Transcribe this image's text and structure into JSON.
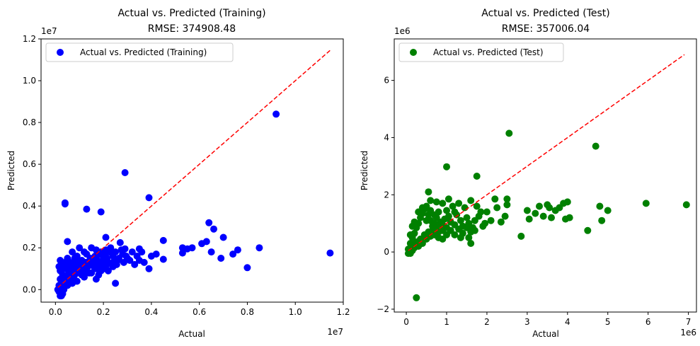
{
  "chart_data": [
    {
      "type": "scatter",
      "title_line1": "Actual vs. Predicted (Training)",
      "title_line2": "RMSE: 374908.48",
      "xlabel": "Actual",
      "ylabel": "Predicted",
      "x_offset_label": "1e7",
      "y_offset_label": "1e7",
      "xlim": [
        -0.06,
        1.2
      ],
      "ylim": [
        -0.06,
        1.2
      ],
      "xticks": [
        0.0,
        0.2,
        0.4,
        0.6,
        0.8,
        1.0,
        1.2
      ],
      "xtick_labels": [
        "0.0",
        "0.2",
        "0.4",
        "0.6",
        "0.8",
        "1.0",
        "1.2"
      ],
      "yticks": [
        0.0,
        0.2,
        0.4,
        0.6,
        0.8,
        1.0,
        1.2
      ],
      "ytick_labels": [
        "0.0",
        "0.2",
        "0.4",
        "0.6",
        "0.8",
        "1.0",
        "1.2"
      ],
      "legend": {
        "label": "Actual vs. Predicted (Training)",
        "position": "upper-left"
      },
      "marker_color": "#0000ff",
      "identity_line": {
        "color": "#ff0000",
        "from": [
          0.01,
          0.01
        ],
        "to": [
          1.145,
          1.145
        ],
        "style": "dashed"
      },
      "points": [
        [
          0.92,
          0.84
        ],
        [
          1.145,
          0.175
        ],
        [
          0.29,
          0.56
        ],
        [
          0.39,
          0.44
        ],
        [
          0.04,
          0.415
        ],
        [
          0.04,
          0.41
        ],
        [
          0.13,
          0.385
        ],
        [
          0.19,
          0.372
        ],
        [
          0.64,
          0.32
        ],
        [
          0.66,
          0.29
        ],
        [
          0.21,
          0.25
        ],
        [
          0.7,
          0.25
        ],
        [
          0.45,
          0.235
        ],
        [
          0.63,
          0.23
        ],
        [
          0.05,
          0.23
        ],
        [
          0.27,
          0.225
        ],
        [
          0.61,
          0.22
        ],
        [
          0.85,
          0.2
        ],
        [
          0.76,
          0.19
        ],
        [
          0.29,
          0.195
        ],
        [
          0.35,
          0.195
        ],
        [
          0.53,
          0.2
        ],
        [
          0.53,
          0.175
        ],
        [
          0.57,
          0.2
        ],
        [
          0.55,
          0.195
        ],
        [
          0.65,
          0.18
        ],
        [
          0.74,
          0.17
        ],
        [
          0.8,
          0.105
        ],
        [
          0.69,
          0.15
        ],
        [
          0.45,
          0.145
        ],
        [
          0.39,
          0.1
        ],
        [
          0.25,
          0.03
        ],
        [
          0.17,
          0.05
        ],
        [
          0.36,
          0.18
        ],
        [
          0.4,
          0.16
        ],
        [
          0.42,
          0.17
        ],
        [
          0.02,
          -0.03
        ],
        [
          0.03,
          -0.02
        ],
        [
          0.05,
          0.02
        ],
        [
          0.07,
          0.03
        ],
        [
          0.08,
          0.07
        ],
        [
          0.1,
          0.08
        ],
        [
          0.12,
          0.1
        ],
        [
          0.14,
          0.12
        ],
        [
          0.16,
          0.14
        ],
        [
          0.18,
          0.12
        ],
        [
          0.2,
          0.15
        ],
        [
          0.22,
          0.13
        ],
        [
          0.24,
          0.16
        ],
        [
          0.26,
          0.14
        ],
        [
          0.28,
          0.17
        ],
        [
          0.3,
          0.15
        ],
        [
          0.32,
          0.18
        ],
        [
          0.34,
          0.16
        ],
        [
          0.02,
          0.14
        ],
        [
          0.03,
          0.12
        ],
        [
          0.04,
          0.1
        ],
        [
          0.05,
          0.15
        ],
        [
          0.06,
          0.13
        ],
        [
          0.07,
          0.18
        ],
        [
          0.08,
          0.12
        ],
        [
          0.09,
          0.16
        ],
        [
          0.1,
          0.2
        ],
        [
          0.11,
          0.14
        ],
        [
          0.12,
          0.18
        ],
        [
          0.13,
          0.17
        ],
        [
          0.15,
          0.2
        ],
        [
          0.17,
          0.19
        ],
        [
          0.19,
          0.18
        ],
        [
          0.21,
          0.19
        ],
        [
          0.23,
          0.2
        ],
        [
          0.25,
          0.18
        ],
        [
          0.02,
          0.05
        ],
        [
          0.03,
          0.07
        ],
        [
          0.04,
          0.04
        ],
        [
          0.06,
          0.06
        ],
        [
          0.08,
          0.09
        ],
        [
          0.09,
          0.04
        ],
        [
          0.11,
          0.07
        ],
        [
          0.13,
          0.09
        ],
        [
          0.15,
          0.08
        ],
        [
          0.17,
          0.1
        ],
        [
          0.19,
          0.09
        ],
        [
          0.21,
          0.11
        ],
        [
          0.01,
          0.0
        ],
        [
          0.015,
          0.02
        ],
        [
          0.025,
          0.01
        ],
        [
          0.035,
          0.03
        ],
        [
          0.045,
          0.06
        ],
        [
          0.055,
          0.08
        ],
        [
          0.065,
          0.1
        ],
        [
          0.075,
          0.05
        ],
        [
          0.085,
          0.11
        ],
        [
          0.095,
          0.09
        ],
        [
          0.105,
          0.12
        ],
        [
          0.115,
          0.1
        ],
        [
          0.125,
          0.13
        ],
        [
          0.135,
          0.11
        ],
        [
          0.145,
          0.15
        ],
        [
          0.155,
          0.12
        ],
        [
          0.165,
          0.16
        ],
        [
          0.175,
          0.14
        ],
        [
          0.185,
          0.17
        ],
        [
          0.195,
          0.13
        ],
        [
          0.205,
          0.17
        ],
        [
          0.215,
          0.15
        ],
        [
          0.225,
          0.18
        ],
        [
          0.235,
          0.12
        ],
        [
          0.245,
          0.14
        ],
        [
          0.255,
          0.12
        ],
        [
          0.265,
          0.15
        ],
        [
          0.275,
          0.19
        ],
        [
          0.285,
          0.13
        ],
        [
          0.295,
          0.16
        ],
        [
          0.31,
          0.14
        ],
        [
          0.33,
          0.12
        ],
        [
          0.35,
          0.14
        ],
        [
          0.37,
          0.13
        ],
        [
          0.02,
          0.09
        ],
        [
          0.03,
          0.06
        ],
        [
          0.04,
          0.13
        ],
        [
          0.05,
          0.11
        ],
        [
          0.06,
          0.09
        ],
        [
          0.07,
          0.12
        ],
        [
          0.08,
          0.15
        ],
        [
          0.09,
          0.13
        ],
        [
          0.1,
          0.11
        ],
        [
          0.11,
          0.09
        ],
        [
          0.12,
          0.06
        ],
        [
          0.13,
          0.13
        ],
        [
          0.14,
          0.08
        ],
        [
          0.16,
          0.11
        ],
        [
          0.18,
          0.07
        ],
        [
          0.2,
          0.1
        ],
        [
          0.22,
          0.09
        ],
        [
          0.24,
          0.11
        ],
        [
          0.015,
          -0.01
        ],
        [
          0.025,
          -0.03
        ],
        [
          0.035,
          0.0
        ],
        [
          0.045,
          0.02
        ],
        [
          0.055,
          0.04
        ],
        [
          0.065,
          0.07
        ],
        [
          0.015,
          0.11
        ],
        [
          0.025,
          0.13
        ]
      ]
    },
    {
      "type": "scatter",
      "title_line1": "Actual vs. Predicted (Test)",
      "title_line2": "RMSE: 357006.04",
      "xlabel": "Actual",
      "ylabel": "Predicted",
      "x_offset_label": "1e6",
      "y_offset_label": "1e6",
      "xlim": [
        -0.3,
        7.2
      ],
      "ylim": [
        -2.1,
        7.45
      ],
      "xticks": [
        0,
        1,
        2,
        3,
        4,
        5,
        6,
        7
      ],
      "xtick_labels": [
        "0",
        "1",
        "2",
        "3",
        "4",
        "5",
        "6",
        "7"
      ],
      "yticks": [
        -2,
        0,
        2,
        4,
        6
      ],
      "ytick_labels": [
        "−2",
        "0",
        "2",
        "4",
        "6"
      ],
      "legend": {
        "label": "Actual vs. Predicted (Test)",
        "position": "upper-left"
      },
      "marker_color": "#008000",
      "identity_line": {
        "color": "#ff0000",
        "from": [
          0.05,
          0.05
        ],
        "to": [
          6.9,
          6.9
        ],
        "style": "dashed"
      },
      "points": [
        [
          2.55,
          4.15
        ],
        [
          4.7,
          3.7
        ],
        [
          1.0,
          2.98
        ],
        [
          1.75,
          2.65
        ],
        [
          0.25,
          -1.6
        ],
        [
          6.95,
          1.65
        ],
        [
          5.95,
          1.7
        ],
        [
          4.8,
          1.6
        ],
        [
          5.0,
          1.45
        ],
        [
          4.85,
          1.1
        ],
        [
          4.5,
          0.75
        ],
        [
          2.85,
          0.55
        ],
        [
          3.05,
          1.15
        ],
        [
          3.0,
          1.45
        ],
        [
          3.3,
          1.6
        ],
        [
          3.4,
          1.25
        ],
        [
          3.6,
          1.2
        ],
        [
          3.7,
          1.45
        ],
        [
          3.9,
          1.7
        ],
        [
          4.0,
          1.75
        ],
        [
          4.05,
          1.2
        ],
        [
          3.95,
          1.15
        ],
        [
          3.8,
          1.55
        ],
        [
          3.55,
          1.55
        ],
        [
          3.5,
          1.65
        ],
        [
          3.2,
          1.35
        ],
        [
          2.5,
          1.85
        ],
        [
          2.5,
          1.65
        ],
        [
          2.45,
          1.25
        ],
        [
          2.2,
          1.85
        ],
        [
          2.25,
          1.55
        ],
        [
          2.35,
          1.05
        ],
        [
          2.1,
          1.1
        ],
        [
          1.9,
          0.9
        ],
        [
          1.6,
          0.3
        ],
        [
          0.15,
          0.2
        ],
        [
          0.55,
          2.1
        ],
        [
          0.6,
          1.8
        ],
        [
          0.75,
          1.75
        ],
        [
          0.9,
          1.7
        ],
        [
          1.05,
          1.85
        ],
        [
          1.15,
          1.6
        ],
        [
          1.3,
          1.7
        ],
        [
          1.45,
          1.55
        ],
        [
          1.6,
          1.8
        ],
        [
          1.75,
          1.6
        ],
        [
          1.85,
          1.4
        ],
        [
          2.0,
          1.4
        ],
        [
          0.05,
          0.1
        ],
        [
          0.1,
          0.3
        ],
        [
          0.15,
          0.5
        ],
        [
          0.2,
          0.65
        ],
        [
          0.25,
          0.85
        ],
        [
          0.3,
          1.0
        ],
        [
          0.35,
          1.2
        ],
        [
          0.4,
          1.35
        ],
        [
          0.45,
          1.5
        ],
        [
          0.5,
          1.6
        ],
        [
          0.55,
          1.3
        ],
        [
          0.6,
          1.1
        ],
        [
          0.65,
          0.9
        ],
        [
          0.7,
          1.0
        ],
        [
          0.75,
          1.2
        ],
        [
          0.8,
          1.4
        ],
        [
          0.85,
          1.05
        ],
        [
          0.9,
          0.95
        ],
        [
          0.95,
          1.15
        ],
        [
          1.0,
          0.85
        ],
        [
          1.05,
          1.25
        ],
        [
          1.1,
          1.05
        ],
        [
          1.2,
          0.95
        ],
        [
          1.25,
          1.3
        ],
        [
          1.35,
          1.1
        ],
        [
          1.4,
          0.9
        ],
        [
          1.5,
          1.2
        ],
        [
          1.55,
          1.0
        ],
        [
          1.65,
          0.85
        ],
        [
          1.7,
          1.1
        ],
        [
          1.8,
          1.25
        ],
        [
          1.95,
          1.0
        ],
        [
          0.05,
          -0.05
        ],
        [
          0.1,
          -0.05
        ],
        [
          0.15,
          0.05
        ],
        [
          0.2,
          0.15
        ],
        [
          0.25,
          0.35
        ],
        [
          0.3,
          0.2
        ],
        [
          0.35,
          0.45
        ],
        [
          0.4,
          0.3
        ],
        [
          0.45,
          0.6
        ],
        [
          0.5,
          0.45
        ],
        [
          0.55,
          0.7
        ],
        [
          0.6,
          0.55
        ],
        [
          0.65,
          0.75
        ],
        [
          0.7,
          0.6
        ],
        [
          0.75,
          0.85
        ],
        [
          0.8,
          0.7
        ],
        [
          0.85,
          0.9
        ],
        [
          0.9,
          0.75
        ],
        [
          1.0,
          0.6
        ],
        [
          1.1,
          0.75
        ],
        [
          1.2,
          0.6
        ],
        [
          1.3,
          0.8
        ],
        [
          1.4,
          0.65
        ],
        [
          1.5,
          0.85
        ],
        [
          1.6,
          0.7
        ],
        [
          0.1,
          0.6
        ],
        [
          0.15,
          0.9
        ],
        [
          0.2,
          1.05
        ],
        [
          0.3,
          1.4
        ],
        [
          0.4,
          1.55
        ],
        [
          0.5,
          1.1
        ],
        [
          0.6,
          1.45
        ],
        [
          0.7,
          1.3
        ],
        [
          0.8,
          0.5
        ],
        [
          0.9,
          0.45
        ],
        [
          1.0,
          1.45
        ],
        [
          1.2,
          1.4
        ],
        [
          1.35,
          0.5
        ],
        [
          1.55,
          0.5
        ],
        [
          1.7,
          0.75
        ]
      ]
    }
  ]
}
